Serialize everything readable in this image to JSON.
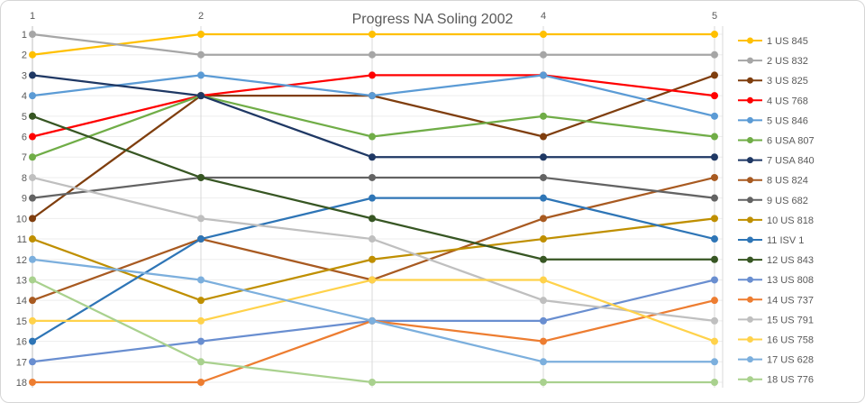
{
  "chart_data": {
    "type": "line",
    "title": "Progress NA Soling 2002",
    "subtitle": "",
    "xlabel": "",
    "ylabel": "",
    "x": [
      1,
      2,
      3,
      4,
      5
    ],
    "x_tick_labels_visible": [
      "1",
      "2",
      "4",
      "5"
    ],
    "x_tick_races_visible": [
      1,
      2,
      4,
      5
    ],
    "y_ticks": [
      "1",
      "2",
      "3",
      "4",
      "5",
      "6",
      "7",
      "8",
      "9",
      "10",
      "11",
      "12",
      "13",
      "14",
      "15",
      "16",
      "17",
      "18"
    ],
    "ylim": [
      1,
      18
    ],
    "y_axis_inverted": true,
    "grid": true,
    "legend_position": "right",
    "series": [
      {
        "legend": "1 US 845",
        "color": "#FFC000",
        "ranks": [
          2,
          1,
          1,
          1,
          1
        ]
      },
      {
        "legend": "2 US 832",
        "color": "#A6A6A6",
        "ranks": [
          1,
          2,
          2,
          2,
          2
        ]
      },
      {
        "legend": "3 US 825",
        "color": "#7F3E0E",
        "ranks": [
          10,
          4,
          4,
          6,
          3
        ]
      },
      {
        "legend": "4 US 768",
        "color": "#FF0000",
        "ranks": [
          6,
          4,
          3,
          3,
          4
        ]
      },
      {
        "legend": "5 US 846",
        "color": "#5B9BD5",
        "ranks": [
          4,
          3,
          4,
          3,
          5
        ]
      },
      {
        "legend": "6 USA 807",
        "color": "#70AD47",
        "ranks": [
          7,
          4,
          6,
          5,
          6
        ]
      },
      {
        "legend": "7 USA 840",
        "color": "#1F3864",
        "ranks": [
          3,
          4,
          7,
          7,
          7
        ]
      },
      {
        "legend": "8 US 824",
        "color": "#A85A21",
        "ranks": [
          14,
          11,
          13,
          10,
          8
        ]
      },
      {
        "legend": "9 US 682",
        "color": "#636363",
        "ranks": [
          9,
          8,
          8,
          8,
          9
        ]
      },
      {
        "legend": "10 US 818",
        "color": "#BF8F00",
        "ranks": [
          11,
          14,
          12,
          11,
          10
        ]
      },
      {
        "legend": "11 ISV 1",
        "color": "#2E75B6",
        "ranks": [
          16,
          11,
          9,
          9,
          11
        ]
      },
      {
        "legend": "12 US 843",
        "color": "#375623",
        "ranks": [
          5,
          8,
          10,
          12,
          12
        ]
      },
      {
        "legend": "13 US 808",
        "color": "#698ED0",
        "ranks": [
          17,
          16,
          15,
          15,
          13
        ]
      },
      {
        "legend": "14 US 737",
        "color": "#ED7D31",
        "ranks": [
          18,
          18,
          15,
          16,
          14
        ]
      },
      {
        "legend": "15 US 791",
        "color": "#BFBFBF",
        "ranks": [
          8,
          10,
          11,
          14,
          15
        ]
      },
      {
        "legend": "16 US 758",
        "color": "#FFD24B",
        "ranks": [
          15,
          15,
          13,
          13,
          16
        ]
      },
      {
        "legend": "17 US 628",
        "color": "#7CAFDD",
        "ranks": [
          12,
          13,
          15,
          17,
          17
        ]
      },
      {
        "legend": "18 US 776",
        "color": "#A9D18E",
        "ranks": [
          13,
          17,
          18,
          18,
          18
        ]
      }
    ]
  },
  "colors": {
    "text": "#595959",
    "grid_horizontal": "#EDEDED",
    "grid_vertical": "#D9D9D9",
    "axis_line": "#BFBFBF",
    "panel_border": "#D6D6D6",
    "background": "#FFFFFF"
  }
}
